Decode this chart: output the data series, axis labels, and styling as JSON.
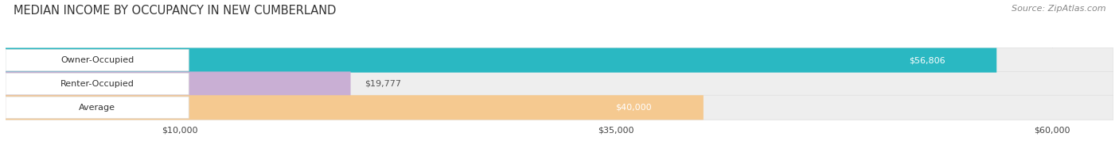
{
  "title": "MEDIAN INCOME BY OCCUPANCY IN NEW CUMBERLAND",
  "source": "Source: ZipAtlas.com",
  "categories": [
    "Owner-Occupied",
    "Renter-Occupied",
    "Average"
  ],
  "values": [
    56806,
    19777,
    40000
  ],
  "bar_colors": [
    "#2ab8c2",
    "#c9afd4",
    "#f5c990"
  ],
  "bar_labels": [
    "$56,806",
    "$19,777",
    "$40,000"
  ],
  "x_ticks": [
    10000,
    35000,
    60000
  ],
  "x_tick_labels": [
    "$10,000",
    "$35,000",
    "$60,000"
  ],
  "xlim_max": 63500,
  "background_color": "#ffffff",
  "bar_bg_color": "#eeeeee",
  "title_fontsize": 10.5,
  "source_fontsize": 8,
  "bar_label_fontsize": 8,
  "cat_label_fontsize": 8
}
